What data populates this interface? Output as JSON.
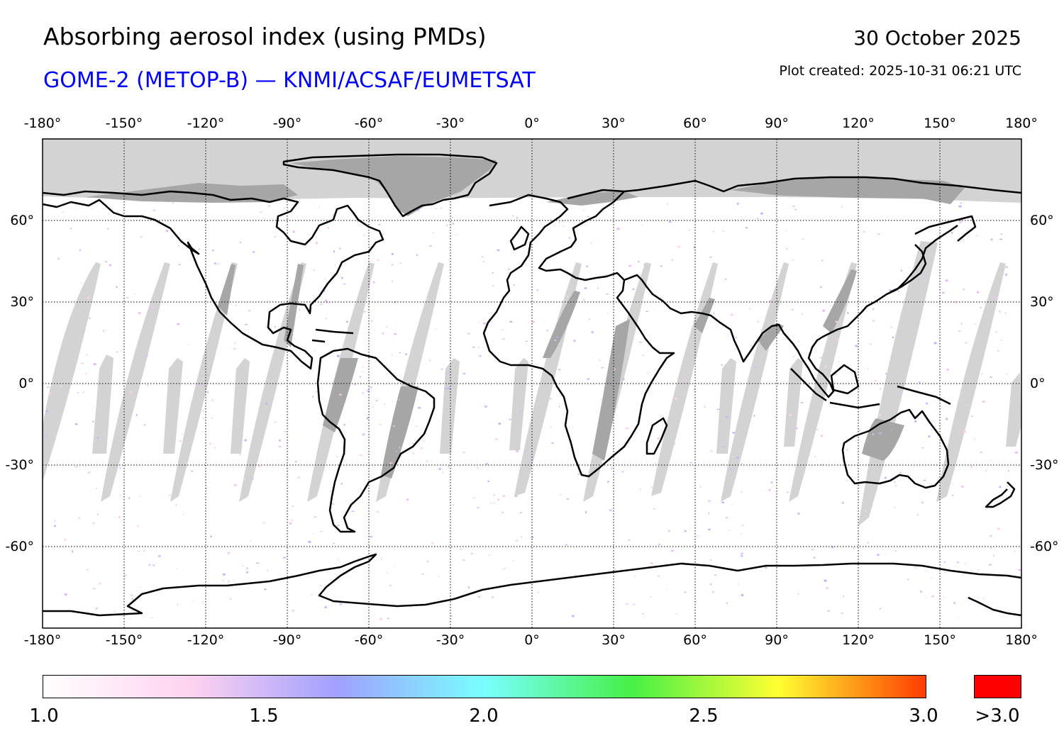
{
  "header": {
    "title": "Absorbing aerosol index (using PMDs)",
    "subtitle": "GOME-2 (METOP-B) — KNMI/ACSAF/EUMETSAT",
    "date": "30 October 2025",
    "created": "Plot created: 2025-10-31 06:21 UTC"
  },
  "map": {
    "projection": "equirectangular",
    "lon_range": [
      -180,
      180
    ],
    "lat_range": [
      -90,
      90
    ],
    "lon_ticks": [
      -180,
      -150,
      -120,
      -90,
      -60,
      -30,
      0,
      30,
      60,
      90,
      120,
      150,
      180
    ],
    "lat_ticks": [
      60,
      30,
      0,
      -30,
      -60
    ],
    "lon_labels": [
      "-180°",
      "-150°",
      "-120°",
      "-90°",
      "-60°",
      "-30°",
      "0°",
      "30°",
      "60°",
      "90°",
      "120°",
      "150°",
      "180°"
    ],
    "lat_labels": [
      "60°",
      "30°",
      "0°",
      "-30°",
      "-60°"
    ],
    "colors": {
      "no_data": "#d3d3d3",
      "no_data_land": "#a6a6a6",
      "coast": "#000000",
      "grid": "#000000"
    }
  },
  "colorbar": {
    "labels": [
      "1.0",
      "1.5",
      "2.0",
      "2.5",
      "3.0",
      ">3.0"
    ],
    "min": 1.0,
    "max": 3.0,
    "over_color": "#ff0000",
    "stops": [
      "#ffffff",
      "#ffd2f0",
      "#a0a0ff",
      "#78ffff",
      "#46f046",
      "#ffff32",
      "#ff3c00"
    ]
  }
}
